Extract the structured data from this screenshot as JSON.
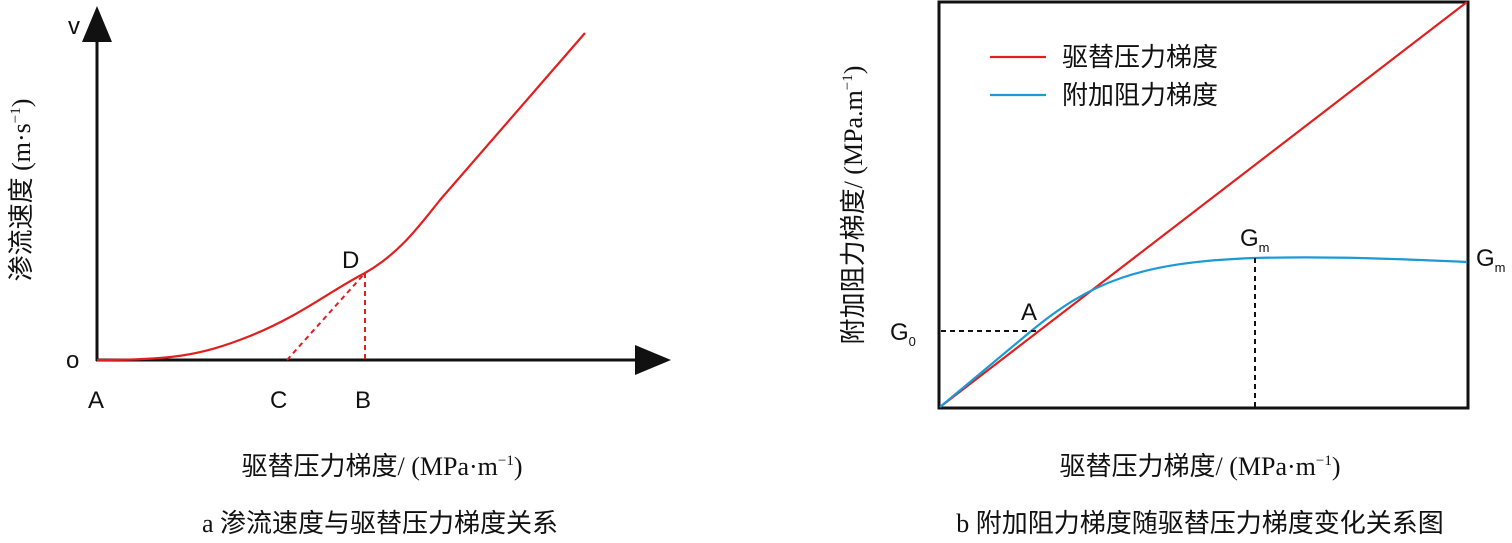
{
  "panel_a": {
    "y_top": "v",
    "origin": "o",
    "point_a": "A",
    "point_c": "C",
    "point_b": "B",
    "point_d": "D",
    "y_label": {
      "main": "渗流速度 (m·s",
      "sup": "−1",
      "end": ")"
    },
    "x_label": {
      "main": "驱替压力梯度/ (MPa·m",
      "sup": "−1",
      "end": ")"
    },
    "caption": "a  渗流速度与驱替压力梯度关系"
  },
  "panel_b": {
    "legend": [
      "驱替压力梯度",
      "附加阻力梯度"
    ],
    "point_a": "A",
    "g0": {
      "main": "G",
      "sub": "0"
    },
    "gm_mid": {
      "main": "G",
      "sub": "m"
    },
    "gm_right": {
      "main": "G",
      "sub": "m"
    },
    "y_label": {
      "main": "附加阻力梯度/ (MPa.m",
      "sup": "−1",
      "end": ")"
    },
    "x_label": {
      "main": "驱替压力梯度/ (MPa·m",
      "sup": "−1",
      "end": ")"
    },
    "caption": "b  附加阻力梯度随驱替压力梯度变化关系图"
  }
}
